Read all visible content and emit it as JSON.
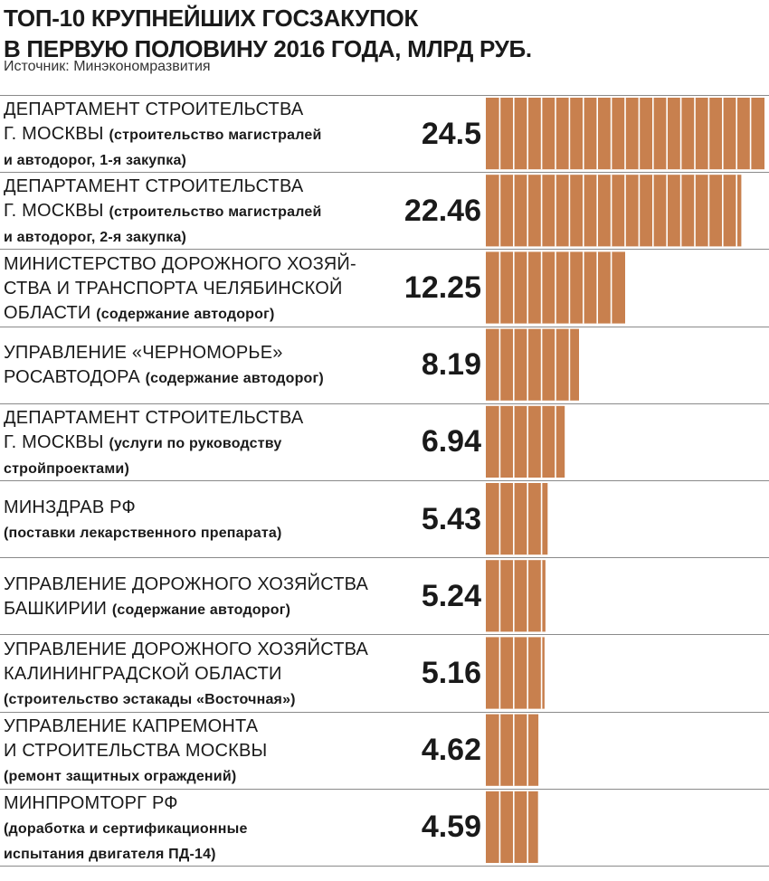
{
  "chart_data": {
    "type": "bar",
    "orientation": "horizontal",
    "title": "ТОП-10 КРУПНЕЙШИХ ГОСЗАКУПОК В ПЕРВУЮ ПОЛОВИНУ 2016 ГОДА, МЛРД РУБ.",
    "title_lines": [
      "ТОП-10 КРУПНЕЙШИХ ГОСЗАКУПОК",
      "В ПЕРВУЮ ПОЛОВИНУ 2016 ГОДА, МЛРД РУБ."
    ],
    "source": "Источник: Минэкономразвития",
    "bar_color": "#c8804e",
    "items": [
      {
        "lines": [
          {
            "n": "ДЕПАРТАМЕНТ СТРОИТЕЛЬСТВА",
            "d": ""
          },
          {
            "n": "Г. МОСКВЫ",
            "d": "(строительство магистралей"
          },
          {
            "n": "",
            "d": "и автодорог, 1-я закупка)"
          }
        ],
        "value": 24.5,
        "value_label": "24.5"
      },
      {
        "lines": [
          {
            "n": "ДЕПАРТАМЕНТ СТРОИТЕЛЬСТВА",
            "d": ""
          },
          {
            "n": "Г. МОСКВЫ",
            "d": "(строительство магистралей"
          },
          {
            "n": "",
            "d": "и автодорог, 2-я закупка)"
          }
        ],
        "value": 22.46,
        "value_label": "22.46"
      },
      {
        "lines": [
          {
            "n": "МИНИСТЕРСТВО ДОРОЖНОГО ХОЗЯЙ-",
            "d": ""
          },
          {
            "n": "СТВА И ТРАНСПОРТА ЧЕЛЯБИНСКОЙ",
            "d": ""
          },
          {
            "n": "ОБЛАСТИ",
            "d": "(содержание автодорог)"
          }
        ],
        "value": 12.25,
        "value_label": "12.25"
      },
      {
        "lines": [
          {
            "n": "УПРАВЛЕНИЕ «ЧЕРНОМОРЬЕ»",
            "d": ""
          },
          {
            "n": "РОСАВТОДОРА",
            "d": "(содержание автодорог)"
          }
        ],
        "value": 8.19,
        "value_label": "8.19"
      },
      {
        "lines": [
          {
            "n": "ДЕПАРТАМЕНТ СТРОИТЕЛЬСТВА",
            "d": ""
          },
          {
            "n": "Г. МОСКВЫ",
            "d": "(услуги по руководству"
          },
          {
            "n": "",
            "d": "стройпроектами)"
          }
        ],
        "value": 6.94,
        "value_label": "6.94"
      },
      {
        "lines": [
          {
            "n": "МИНЗДРАВ РФ",
            "d": ""
          },
          {
            "n": "",
            "d": "(поставки лекарственного препарата)"
          }
        ],
        "value": 5.43,
        "value_label": "5.43"
      },
      {
        "lines": [
          {
            "n": "УПРАВЛЕНИЕ ДОРОЖНОГО ХОЗЯЙСТВА",
            "d": ""
          },
          {
            "n": "БАШКИРИИ",
            "d": "(содержание автодорог)"
          }
        ],
        "value": 5.24,
        "value_label": "5.24"
      },
      {
        "lines": [
          {
            "n": "УПРАВЛЕНИЕ ДОРОЖНОГО ХОЗЯЙСТВА",
            "d": ""
          },
          {
            "n": "КАЛИНИНГРАДСКОЙ ОБЛАСТИ",
            "d": ""
          },
          {
            "n": "",
            "d": "(строительство эстакады «Восточная»)"
          }
        ],
        "value": 5.16,
        "value_label": "5.16"
      },
      {
        "lines": [
          {
            "n": "УПРАВЛЕНИЕ КАПРЕМОНТА",
            "d": ""
          },
          {
            "n": "И СТРОИТЕЛЬСТВА МОСКВЫ",
            "d": ""
          },
          {
            "n": "",
            "d": "(ремонт защитных ограждений)"
          }
        ],
        "value": 4.62,
        "value_label": "4.62"
      },
      {
        "lines": [
          {
            "n": "МИНПРОМТОРГ РФ",
            "d": ""
          },
          {
            "n": "",
            "d": "(доработка и сертификационные"
          },
          {
            "n": "",
            "d": "испытания двигателя ПД-14)"
          }
        ],
        "value": 4.59,
        "value_label": "4.59"
      }
    ]
  }
}
